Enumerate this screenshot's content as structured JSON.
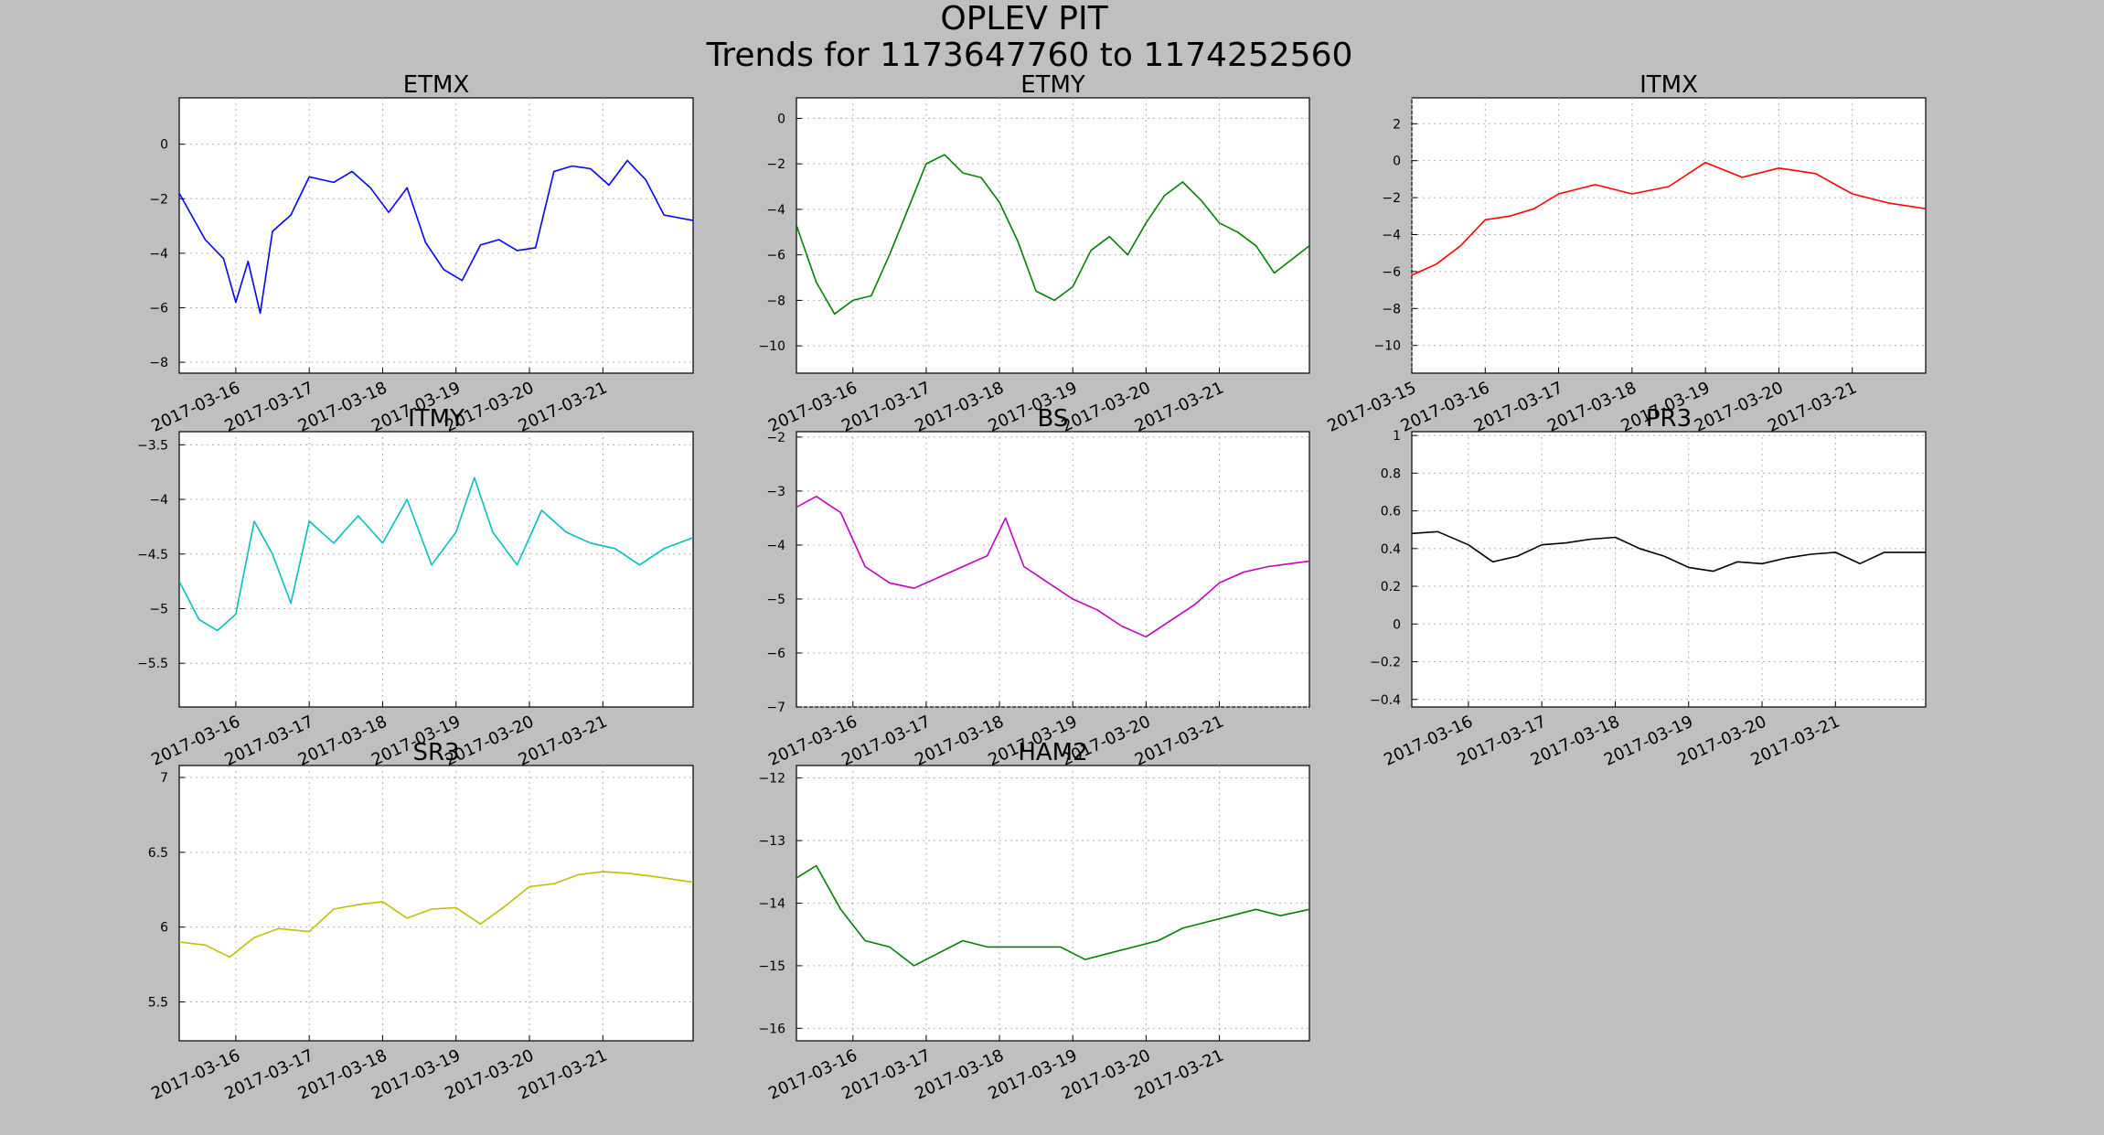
{
  "figure": {
    "title": "OPLEV PIT",
    "subtitle": "Trends for 1173647760 to 1174252560"
  },
  "chart_data": [
    {
      "type": "line",
      "title": "ETMX",
      "color": "#0000ff",
      "xlim": [
        "2017-03-15 05:30",
        "2017-03-22 05:30"
      ],
      "xticks": [
        "2017-03-16",
        "2017-03-17",
        "2017-03-18",
        "2017-03-19",
        "2017-03-20",
        "2017-03-21"
      ],
      "ylim": [
        -8.4,
        1.7
      ],
      "yticks": [
        0,
        -2,
        -4,
        -6,
        -8
      ],
      "x": [
        "2017-03-15 05:30",
        "2017-03-15 14:00",
        "2017-03-15 20:00",
        "2017-03-16 00:00",
        "2017-03-16 04:00",
        "2017-03-16 08:00",
        "2017-03-16 12:00",
        "2017-03-16 18:00",
        "2017-03-17 00:00",
        "2017-03-17 08:00",
        "2017-03-17 14:00",
        "2017-03-17 20:00",
        "2017-03-18 02:00",
        "2017-03-18 08:00",
        "2017-03-18 14:00",
        "2017-03-18 20:00",
        "2017-03-19 02:00",
        "2017-03-19 08:00",
        "2017-03-19 14:00",
        "2017-03-19 20:00",
        "2017-03-20 02:00",
        "2017-03-20 08:00",
        "2017-03-20 14:00",
        "2017-03-20 20:00",
        "2017-03-21 02:00",
        "2017-03-21 08:00",
        "2017-03-21 14:00",
        "2017-03-21 20:00",
        "2017-03-22 05:30"
      ],
      "y": [
        -1.8,
        -3.5,
        -4.2,
        -5.8,
        -4.3,
        -6.2,
        -3.2,
        -2.6,
        -1.2,
        -1.4,
        -1.0,
        -1.6,
        -2.5,
        -1.6,
        -3.6,
        -4.6,
        -5.0,
        -3.7,
        -3.5,
        -3.9,
        -3.8,
        -1.0,
        -0.8,
        -0.9,
        -1.5,
        -0.6,
        -1.3,
        -2.6,
        -2.8
      ]
    },
    {
      "type": "line",
      "title": "ETMY",
      "color": "#008000",
      "xlim": [
        "2017-03-15 05:30",
        "2017-03-22 05:30"
      ],
      "xticks": [
        "2017-03-16",
        "2017-03-17",
        "2017-03-18",
        "2017-03-19",
        "2017-03-20",
        "2017-03-21"
      ],
      "ylim": [
        -11.2,
        0.9
      ],
      "yticks": [
        0,
        -2,
        -4,
        -6,
        -8,
        -10
      ],
      "x": [
        "2017-03-15 05:30",
        "2017-03-15 12:00",
        "2017-03-15 18:00",
        "2017-03-16 00:00",
        "2017-03-16 06:00",
        "2017-03-16 12:00",
        "2017-03-16 18:00",
        "2017-03-17 00:00",
        "2017-03-17 06:00",
        "2017-03-17 12:00",
        "2017-03-17 18:00",
        "2017-03-18 00:00",
        "2017-03-18 06:00",
        "2017-03-18 12:00",
        "2017-03-18 18:00",
        "2017-03-19 00:00",
        "2017-03-19 06:00",
        "2017-03-19 12:00",
        "2017-03-19 18:00",
        "2017-03-20 00:00",
        "2017-03-20 06:00",
        "2017-03-20 12:00",
        "2017-03-20 18:00",
        "2017-03-21 00:00",
        "2017-03-21 06:00",
        "2017-03-21 12:00",
        "2017-03-21 18:00",
        "2017-03-22 05:30"
      ],
      "y": [
        -4.7,
        -7.2,
        -8.6,
        -8.0,
        -7.8,
        -6.0,
        -4.0,
        -2.0,
        -1.6,
        -2.4,
        -2.6,
        -3.7,
        -5.4,
        -7.6,
        -8.0,
        -7.4,
        -5.8,
        -5.2,
        -6.0,
        -4.6,
        -3.4,
        -2.8,
        -3.6,
        -4.6,
        -5.0,
        -5.6,
        -6.8,
        -5.6
      ]
    },
    {
      "type": "line",
      "title": "ITMX",
      "color": "#ff0000",
      "xlim": [
        "2017-03-15 00:00",
        "2017-03-22 00:00"
      ],
      "xticks": [
        "2017-03-15",
        "2017-03-16",
        "2017-03-17",
        "2017-03-18",
        "2017-03-19",
        "2017-03-20",
        "2017-03-21"
      ],
      "ylim": [
        -11.5,
        3.4
      ],
      "yticks": [
        2,
        0,
        -2,
        -4,
        -6,
        -8,
        -10
      ],
      "x": [
        "2017-03-15 00:00",
        "2017-03-15 08:00",
        "2017-03-15 16:00",
        "2017-03-16 00:00",
        "2017-03-16 08:00",
        "2017-03-16 16:00",
        "2017-03-17 00:00",
        "2017-03-17 12:00",
        "2017-03-18 00:00",
        "2017-03-18 12:00",
        "2017-03-19 00:00",
        "2017-03-19 12:00",
        "2017-03-20 00:00",
        "2017-03-20 12:00",
        "2017-03-21 00:00",
        "2017-03-21 12:00",
        "2017-03-22 00:00"
      ],
      "y": [
        -6.2,
        -5.6,
        -4.6,
        -3.2,
        -3.0,
        -2.6,
        -1.8,
        -1.3,
        -1.8,
        -1.4,
        -0.1,
        -0.9,
        -0.4,
        -0.7,
        -1.8,
        -2.3,
        -2.6
      ]
    },
    {
      "type": "line",
      "title": "ITMY",
      "color": "#00bfbf",
      "xlim": [
        "2017-03-15 05:30",
        "2017-03-22 05:30"
      ],
      "xticks": [
        "2017-03-16",
        "2017-03-17",
        "2017-03-18",
        "2017-03-19",
        "2017-03-20",
        "2017-03-21"
      ],
      "ylim": [
        -5.9,
        -3.38
      ],
      "yticks": [
        -3.5,
        -4.0,
        -4.5,
        -5.0,
        -5.5
      ],
      "x": [
        "2017-03-15 05:30",
        "2017-03-15 12:00",
        "2017-03-15 18:00",
        "2017-03-16 00:00",
        "2017-03-16 06:00",
        "2017-03-16 12:00",
        "2017-03-16 18:00",
        "2017-03-17 00:00",
        "2017-03-17 08:00",
        "2017-03-17 16:00",
        "2017-03-18 00:00",
        "2017-03-18 08:00",
        "2017-03-18 16:00",
        "2017-03-19 00:00",
        "2017-03-19 06:00",
        "2017-03-19 12:00",
        "2017-03-19 20:00",
        "2017-03-20 04:00",
        "2017-03-20 12:00",
        "2017-03-20 20:00",
        "2017-03-21 04:00",
        "2017-03-21 12:00",
        "2017-03-21 20:00",
        "2017-03-22 05:30"
      ],
      "y": [
        -4.75,
        -5.1,
        -5.2,
        -5.05,
        -4.2,
        -4.5,
        -4.95,
        -4.2,
        -4.4,
        -4.15,
        -4.4,
        -4.0,
        -4.6,
        -4.3,
        -3.8,
        -4.3,
        -4.6,
        -4.1,
        -4.3,
        -4.4,
        -4.45,
        -4.6,
        -4.45,
        -4.35
      ]
    },
    {
      "type": "line",
      "title": "BS",
      "color": "#bf00bf",
      "xlim": [
        "2017-03-15 05:30",
        "2017-03-22 05:30"
      ],
      "xticks": [
        "2017-03-16",
        "2017-03-17",
        "2017-03-18",
        "2017-03-19",
        "2017-03-20",
        "2017-03-21"
      ],
      "ylim": [
        -7.0,
        -1.9
      ],
      "yticks": [
        -2,
        -3,
        -4,
        -5,
        -6,
        -7
      ],
      "x": [
        "2017-03-15 05:30",
        "2017-03-15 12:00",
        "2017-03-15 20:00",
        "2017-03-16 04:00",
        "2017-03-16 12:00",
        "2017-03-16 20:00",
        "2017-03-17 04:00",
        "2017-03-17 12:00",
        "2017-03-17 20:00",
        "2017-03-18 02:00",
        "2017-03-18 08:00",
        "2017-03-18 16:00",
        "2017-03-19 00:00",
        "2017-03-19 08:00",
        "2017-03-19 16:00",
        "2017-03-20 00:00",
        "2017-03-20 08:00",
        "2017-03-20 16:00",
        "2017-03-21 00:00",
        "2017-03-21 08:00",
        "2017-03-21 16:00",
        "2017-03-22 05:30"
      ],
      "y": [
        -3.3,
        -3.1,
        -3.4,
        -4.4,
        -4.7,
        -4.8,
        -4.6,
        -4.4,
        -4.2,
        -3.5,
        -4.4,
        -4.7,
        -5.0,
        -5.2,
        -5.5,
        -5.7,
        -5.4,
        -5.1,
        -4.7,
        -4.5,
        -4.4,
        -4.3
      ]
    },
    {
      "type": "line",
      "title": "PR3",
      "color": "#000000",
      "xlim": [
        "2017-03-15 05:30",
        "2017-03-22 05:30"
      ],
      "xticks": [
        "2017-03-16",
        "2017-03-17",
        "2017-03-18",
        "2017-03-19",
        "2017-03-20",
        "2017-03-21"
      ],
      "ylim": [
        -0.44,
        1.02
      ],
      "yticks": [
        1.0,
        0.8,
        0.6,
        0.4,
        0.2,
        0.0,
        -0.2,
        -0.4
      ],
      "x": [
        "2017-03-15 05:30",
        "2017-03-15 14:00",
        "2017-03-16 00:00",
        "2017-03-16 08:00",
        "2017-03-16 16:00",
        "2017-03-17 00:00",
        "2017-03-17 08:00",
        "2017-03-17 16:00",
        "2017-03-18 00:00",
        "2017-03-18 08:00",
        "2017-03-18 16:00",
        "2017-03-19 00:00",
        "2017-03-19 08:00",
        "2017-03-19 16:00",
        "2017-03-20 00:00",
        "2017-03-20 08:00",
        "2017-03-20 16:00",
        "2017-03-21 00:00",
        "2017-03-21 08:00",
        "2017-03-21 16:00",
        "2017-03-22 05:30"
      ],
      "y": [
        0.48,
        0.49,
        0.42,
        0.33,
        0.36,
        0.42,
        0.43,
        0.45,
        0.46,
        0.4,
        0.36,
        0.3,
        0.28,
        0.33,
        0.32,
        0.35,
        0.37,
        0.38,
        0.32,
        0.38,
        0.38
      ]
    },
    {
      "type": "line",
      "title": "SR3",
      "color": "#bfbf00",
      "xlim": [
        "2017-03-15 05:30",
        "2017-03-22 05:30"
      ],
      "xticks": [
        "2017-03-16",
        "2017-03-17",
        "2017-03-18",
        "2017-03-19",
        "2017-03-20",
        "2017-03-21"
      ],
      "ylim": [
        5.24,
        7.08
      ],
      "yticks": [
        7.0,
        6.5,
        6.0,
        5.5
      ],
      "x": [
        "2017-03-15 05:30",
        "2017-03-15 14:00",
        "2017-03-15 22:00",
        "2017-03-16 06:00",
        "2017-03-16 14:00",
        "2017-03-17 00:00",
        "2017-03-17 08:00",
        "2017-03-17 16:00",
        "2017-03-18 00:00",
        "2017-03-18 08:00",
        "2017-03-18 16:00",
        "2017-03-19 00:00",
        "2017-03-19 08:00",
        "2017-03-19 16:00",
        "2017-03-20 00:00",
        "2017-03-20 08:00",
        "2017-03-20 16:00",
        "2017-03-21 00:00",
        "2017-03-21 08:00",
        "2017-03-21 16:00",
        "2017-03-22 05:30"
      ],
      "y": [
        5.9,
        5.88,
        5.8,
        5.93,
        5.99,
        5.97,
        6.12,
        6.15,
        6.17,
        6.06,
        6.12,
        6.13,
        6.02,
        6.14,
        6.27,
        6.29,
        6.35,
        6.37,
        6.36,
        6.34,
        6.3
      ]
    },
    {
      "type": "line",
      "title": "HAM2",
      "color": "#008000",
      "xlim": [
        "2017-03-15 05:30",
        "2017-03-22 05:30"
      ],
      "xticks": [
        "2017-03-16",
        "2017-03-17",
        "2017-03-18",
        "2017-03-19",
        "2017-03-20",
        "2017-03-21"
      ],
      "ylim": [
        -16.2,
        -11.8
      ],
      "yticks": [
        -12,
        -13,
        -14,
        -15,
        -16
      ],
      "x": [
        "2017-03-15 05:30",
        "2017-03-15 12:00",
        "2017-03-15 20:00",
        "2017-03-16 04:00",
        "2017-03-16 12:00",
        "2017-03-16 20:00",
        "2017-03-17 04:00",
        "2017-03-17 12:00",
        "2017-03-17 20:00",
        "2017-03-18 04:00",
        "2017-03-18 12:00",
        "2017-03-18 20:00",
        "2017-03-19 04:00",
        "2017-03-19 12:00",
        "2017-03-19 20:00",
        "2017-03-20 04:00",
        "2017-03-20 12:00",
        "2017-03-20 20:00",
        "2017-03-21 04:00",
        "2017-03-21 12:00",
        "2017-03-21 20:00",
        "2017-03-22 05:30"
      ],
      "y": [
        -13.6,
        -13.4,
        -14.1,
        -14.6,
        -14.7,
        -15.0,
        -14.8,
        -14.6,
        -14.7,
        -14.7,
        -14.7,
        -14.7,
        -14.9,
        -14.8,
        -14.7,
        -14.6,
        -14.4,
        -14.3,
        -14.2,
        -14.1,
        -14.2,
        -14.1
      ]
    }
  ]
}
